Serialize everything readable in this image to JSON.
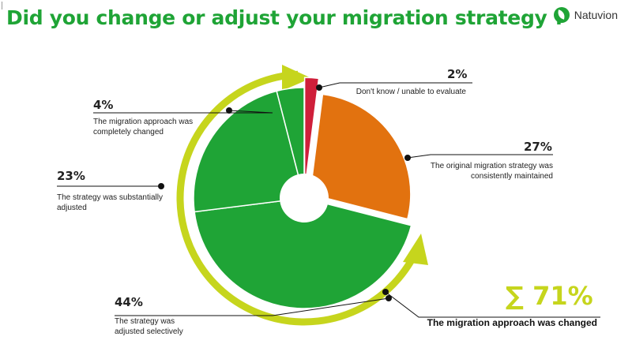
{
  "header": {
    "title": "Did you change or adjust your migration strategy ?",
    "logo_text": "Natuvion",
    "logo_icon": "leaf-icon"
  },
  "colors": {
    "title": "#1fa436",
    "green": "#1fa436",
    "orange": "#e2720f",
    "red": "#cf1f3a",
    "arrow": "#c6d51d"
  },
  "chart_data": {
    "type": "pie",
    "slices": [
      {
        "label": "Don't know / unable to evaluate",
        "value": 2,
        "value_label": "2%",
        "color": "#cf1f3a"
      },
      {
        "label": "The original migration strategy was consistently maintained",
        "value": 27,
        "value_label": "27%",
        "color": "#e2720f"
      },
      {
        "label": "The strategy was adjusted selectively",
        "value": 44,
        "value_label": "44%",
        "color": "#1fa436"
      },
      {
        "label": "The strategy was substantially adjusted",
        "value": 23,
        "value_label": "23%",
        "color": "#1fa436"
      },
      {
        "label": "The migration approach was completely changed",
        "value": 4,
        "value_label": "4%",
        "color": "#1fa436"
      }
    ],
    "summary": {
      "value": 71,
      "text": "∑ 71%",
      "label": "The migration approach was changed"
    }
  }
}
